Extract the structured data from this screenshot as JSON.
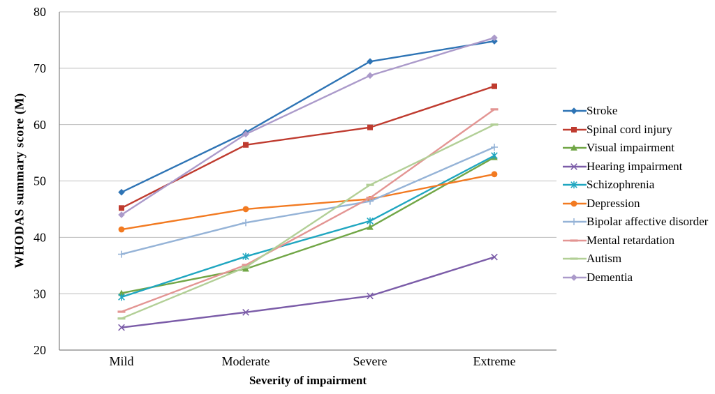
{
  "figure": {
    "background": "#FFFFFF",
    "axis_color": "#808080",
    "gridline_color": "#BDBDBD",
    "text_color": "#000000"
  },
  "chart_data": {
    "type": "line",
    "title": "",
    "xlabel": "Severity of impairment",
    "ylabel": "WHODAS summary score (M)",
    "categories": [
      "Mild",
      "Moderate",
      "Severe",
      "Extreme"
    ],
    "ylim": [
      20,
      80
    ],
    "yticks": [
      20,
      30,
      40,
      50,
      60,
      70,
      80
    ],
    "grid": "horizontal",
    "legend_position": "right",
    "series": [
      {
        "name": "Stroke",
        "color": "#2E74B5",
        "marker": "diamond",
        "values": [
          48.0,
          58.6,
          71.2,
          74.8
        ]
      },
      {
        "name": "Spinal cord injury",
        "color": "#BF3B2F",
        "marker": "square",
        "values": [
          45.2,
          56.4,
          59.5,
          66.8
        ]
      },
      {
        "name": "Visual impairment",
        "color": "#71A646",
        "marker": "triangle",
        "values": [
          30.1,
          34.4,
          41.8,
          54.2
        ]
      },
      {
        "name": "Hearing impairment",
        "color": "#7B5CA8",
        "marker": "x",
        "values": [
          24.0,
          26.7,
          29.6,
          36.5
        ]
      },
      {
        "name": "Schizophrenia",
        "color": "#1FA6C0",
        "marker": "star",
        "values": [
          29.4,
          36.6,
          42.9,
          54.5
        ]
      },
      {
        "name": "Depression",
        "color": "#F27A21",
        "marker": "circle",
        "values": [
          41.4,
          45.0,
          46.8,
          51.2
        ]
      },
      {
        "name": "Bipolar affective disorder",
        "color": "#95B3D7",
        "marker": "plus",
        "values": [
          37.0,
          42.6,
          46.4,
          56.0
        ]
      },
      {
        "name": "Mental retardation",
        "color": "#E39593",
        "marker": "dash",
        "values": [
          26.8,
          35.1,
          47.0,
          62.7
        ]
      },
      {
        "name": "Autism",
        "color": "#B2CF96",
        "marker": "dash",
        "values": [
          25.6,
          34.7,
          49.3,
          60.0
        ]
      },
      {
        "name": "Dementia",
        "color": "#AB9ACA",
        "marker": "diamond",
        "values": [
          44.0,
          58.3,
          68.7,
          75.4
        ]
      }
    ]
  }
}
